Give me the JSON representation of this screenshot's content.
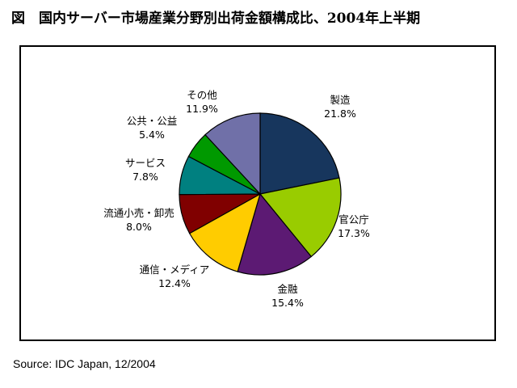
{
  "title": "図　国内サーバー市場産業分野別出荷金額構成比、2004年上半期",
  "source": "Source: IDC Japan, 12/2004",
  "chart_data": {
    "type": "pie",
    "title": "図　国内サーバー市場産業分野別出荷金額構成比、2004年上半期",
    "start": "12 o'clock",
    "direction": "clockwise",
    "legend": "none",
    "slices": [
      {
        "label": "製造",
        "value": 21.8,
        "value_label": "21.8%",
        "color": "#17365d"
      },
      {
        "label": "官公庁",
        "value": 17.3,
        "value_label": "17.3%",
        "color": "#99cc00"
      },
      {
        "label": "金融",
        "value": 15.4,
        "value_label": "15.4%",
        "color": "#5c1a73"
      },
      {
        "label": "通信・メディア",
        "value": 12.4,
        "value_label": "12.4%",
        "color": "#ffcc00"
      },
      {
        "label": "流通小売・卸売",
        "value": 8.0,
        "value_label": "8.0%",
        "color": "#800000"
      },
      {
        "label": "サービス",
        "value": 7.8,
        "value_label": "7.8%",
        "color": "#008080"
      },
      {
        "label": "公共・公益",
        "value": 5.4,
        "value_label": "5.4%",
        "color": "#009900"
      },
      {
        "label": "その他",
        "value": 11.9,
        "value_label": "11.9%",
        "color": "#7070a8"
      }
    ]
  }
}
